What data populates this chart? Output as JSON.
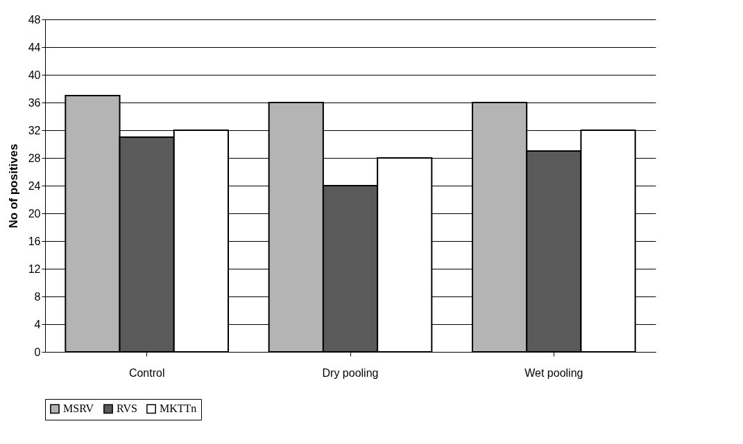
{
  "chart_data": {
    "type": "bar",
    "ylabel": "No of positives",
    "categories": [
      "Control",
      "Dry pooling",
      "Wet pooling"
    ],
    "series": [
      {
        "name": "MSRV",
        "color": "#b4b4b4",
        "values": [
          37,
          36,
          36
        ]
      },
      {
        "name": "RVS",
        "color": "#5a5a5a",
        "values": [
          31,
          24,
          29
        ]
      },
      {
        "name": "MKTTn",
        "color": "#ffffff",
        "values": [
          32,
          28,
          32
        ]
      }
    ],
    "ylim": [
      0,
      48
    ],
    "yticks": [
      0,
      4,
      8,
      12,
      16,
      20,
      24,
      28,
      32,
      36,
      40,
      44,
      48
    ],
    "grid": "y",
    "legend": "bottom"
  }
}
